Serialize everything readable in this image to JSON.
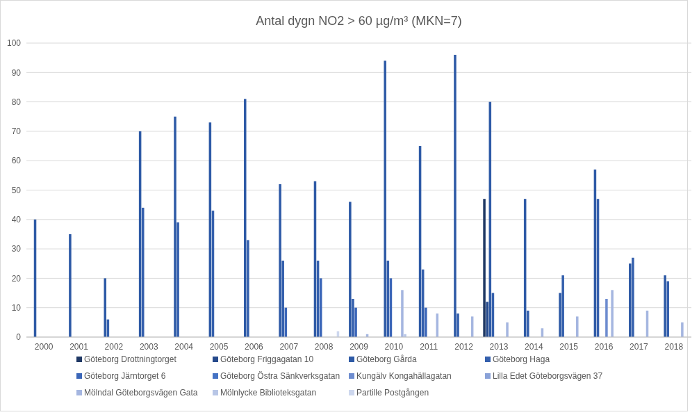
{
  "chart_data": {
    "type": "bar",
    "title": "Antal dygn NO2 > 60 µg/m³ (MKN=7)",
    "categories": [
      "2000",
      "2001",
      "2002",
      "2003",
      "2004",
      "2005",
      "2006",
      "2007",
      "2008",
      "2009",
      "2010",
      "2011",
      "2012",
      "2013",
      "2014",
      "2015",
      "2016",
      "2017",
      "2018"
    ],
    "series": [
      {
        "name": "Göteborg Drottningtorget",
        "color": "#1f3864",
        "values": [
          null,
          null,
          null,
          null,
          null,
          null,
          null,
          null,
          null,
          null,
          null,
          null,
          null,
          47,
          null,
          null,
          null,
          null,
          null
        ]
      },
      {
        "name": "Göteborg Friggagatan 10",
        "color": "#264a8c",
        "values": [
          null,
          null,
          null,
          null,
          null,
          null,
          null,
          null,
          null,
          null,
          null,
          null,
          null,
          12,
          null,
          null,
          null,
          null,
          null
        ]
      },
      {
        "name": "Göteborg Gårda",
        "color": "#2e5aa6",
        "values": [
          40,
          35,
          20,
          70,
          75,
          73,
          81,
          52,
          53,
          46,
          94,
          65,
          96,
          80,
          47,
          15,
          57,
          25,
          21
        ]
      },
      {
        "name": "Göteborg Haga",
        "color": "#3560ad",
        "values": [
          null,
          null,
          6,
          44,
          39,
          43,
          33,
          26,
          26,
          13,
          26,
          23,
          8,
          15,
          9,
          21,
          47,
          27,
          19
        ]
      },
      {
        "name": "Göteborg Järntorget 6",
        "color": "#3b66b8",
        "values": [
          null,
          null,
          null,
          null,
          null,
          null,
          null,
          10,
          20,
          10,
          20,
          10,
          null,
          null,
          null,
          null,
          null,
          null,
          null
        ]
      },
      {
        "name": "Göteborg Östra Sänkverksgatan",
        "color": "#4472c4",
        "values": [
          null,
          null,
          null,
          null,
          null,
          null,
          null,
          null,
          null,
          null,
          null,
          null,
          null,
          null,
          null,
          null,
          null,
          null,
          null
        ]
      },
      {
        "name": "Kungälv Kongahällagatan",
        "color": "#6d8ccf",
        "values": [
          null,
          null,
          null,
          null,
          null,
          null,
          null,
          null,
          null,
          null,
          null,
          null,
          null,
          null,
          null,
          null,
          13,
          null,
          null
        ]
      },
      {
        "name": "Lilla Edet Göteborgsvägen 37",
        "color": "#8aa2d8",
        "values": [
          null,
          null,
          null,
          null,
          null,
          null,
          null,
          null,
          null,
          null,
          null,
          null,
          null,
          null,
          null,
          null,
          null,
          null,
          null
        ]
      },
      {
        "name": "Mölndal Göteborgsvägen Gata",
        "color": "#a5b6e0",
        "values": [
          null,
          null,
          null,
          null,
          null,
          null,
          null,
          null,
          null,
          1,
          16,
          8,
          7,
          5,
          3,
          7,
          16,
          9,
          5
        ]
      },
      {
        "name": "Mölnlycke Biblioteksgatan",
        "color": "#b8c6e6",
        "values": [
          null,
          null,
          null,
          null,
          null,
          null,
          null,
          null,
          null,
          null,
          1,
          null,
          null,
          null,
          null,
          null,
          null,
          null,
          null
        ]
      },
      {
        "name": "Partille Postgången",
        "color": "#cdd7ee",
        "values": [
          null,
          null,
          null,
          null,
          null,
          null,
          null,
          null,
          2,
          null,
          null,
          null,
          null,
          null,
          null,
          null,
          null,
          null,
          null
        ]
      }
    ],
    "ylim": [
      0,
      100
    ],
    "yticks": [
      0,
      10,
      20,
      30,
      40,
      50,
      60,
      70,
      80,
      90,
      100
    ],
    "grid": "y",
    "legend": "bottom"
  }
}
